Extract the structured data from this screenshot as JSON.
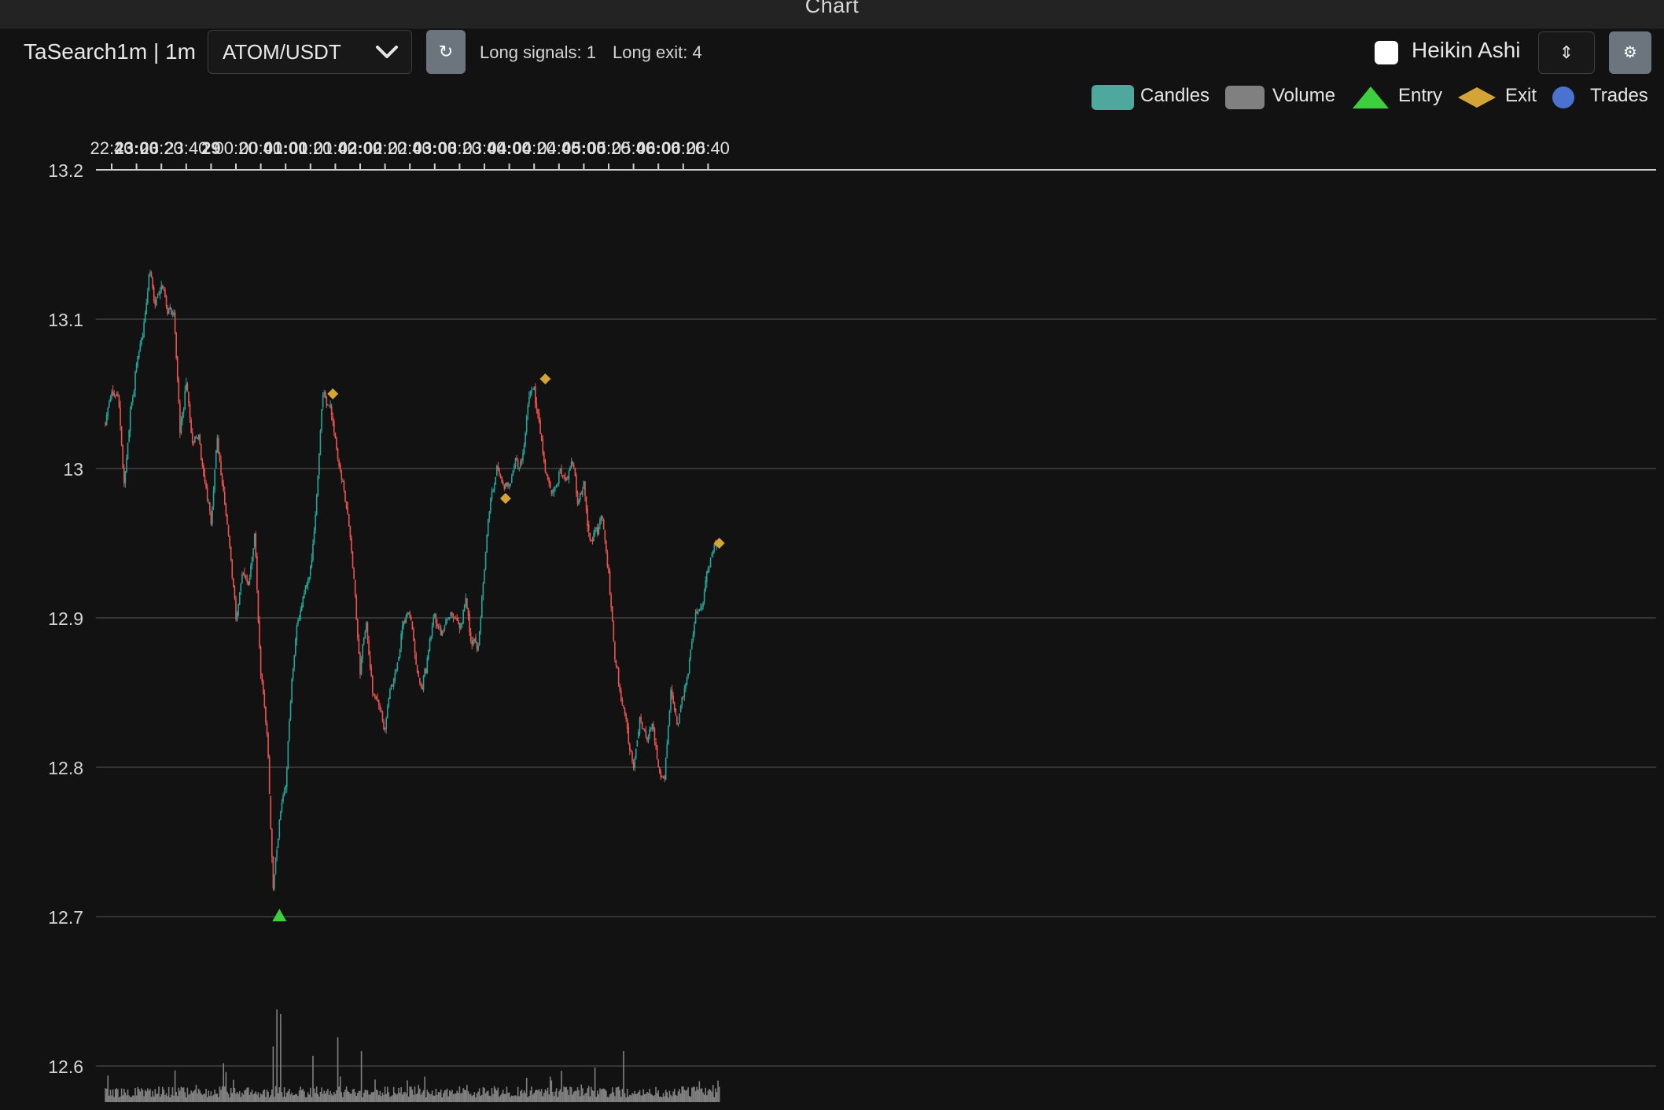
{
  "window": {
    "title": "Chart"
  },
  "toolbar": {
    "strategy_label": "TaSearch1m | 1m",
    "pair": "ATOM/USDT",
    "refresh_icon": "↻",
    "long_signals": "Long signals: 1",
    "long_exit": "Long exit: 4",
    "heikin_ashi_label": "Heikin Ashi",
    "heikin_ashi_checked": false,
    "sort_icon": "⇕",
    "settings_icon": "⚙"
  },
  "legend": {
    "candles": "Candles",
    "volume": "Volume",
    "entry": "Entry",
    "exit": "Exit",
    "trades": "Trades"
  },
  "colors": {
    "up": "#26a69a",
    "down": "#ef5350",
    "volume": "#808080",
    "entry": "#3ecf3e",
    "exit": "#d4a437",
    "trades": "#4a73d1",
    "grid": "#555555",
    "background": "#121212"
  },
  "chart_data": {
    "type": "candlestick",
    "x_ticks": [
      {
        "label": "22:40",
        "bold": false
      },
      {
        "label": "23:00",
        "bold": true
      },
      {
        "label": "23:20",
        "bold": false
      },
      {
        "label": "23:40",
        "bold": false
      },
      {
        "label": "29",
        "bold": true
      },
      {
        "label": "00:20",
        "bold": false
      },
      {
        "label": "00:40",
        "bold": false
      },
      {
        "label": "01:00",
        "bold": true
      },
      {
        "label": "01:20",
        "bold": false
      },
      {
        "label": "01:40",
        "bold": false
      },
      {
        "label": "02:00",
        "bold": true
      },
      {
        "label": "02:20",
        "bold": false
      },
      {
        "label": "02:40",
        "bold": false
      },
      {
        "label": "03:00",
        "bold": true
      },
      {
        "label": "03:20",
        "bold": false
      },
      {
        "label": "03:40",
        "bold": false
      },
      {
        "label": "04:00",
        "bold": true
      },
      {
        "label": "04:20",
        "bold": false
      },
      {
        "label": "04:40",
        "bold": false
      },
      {
        "label": "05:00",
        "bold": true
      },
      {
        "label": "05:20",
        "bold": false
      },
      {
        "label": "05:40",
        "bold": false
      },
      {
        "label": "06:00",
        "bold": true
      },
      {
        "label": "06:20",
        "bold": false
      },
      {
        "label": "06:40",
        "bold": false
      }
    ],
    "y_ticks": [
      13.2,
      13.1,
      13,
      12.9,
      12.8,
      12.7,
      12.6
    ],
    "y_tick_labels": [
      "13.2",
      "13.1",
      "13",
      "12.9",
      "12.8",
      "12.7",
      "12.6"
    ],
    "ylim": [
      12.58,
      13.2
    ],
    "time_start": "22:35",
    "time_end": "06:49",
    "price_path": [
      [
        "22:35",
        13.03
      ],
      [
        "22:40",
        13.05
      ],
      [
        "22:45",
        13.05
      ],
      [
        "22:50",
        12.99
      ],
      [
        "22:55",
        13.04
      ],
      [
        "23:00",
        13.07
      ],
      [
        "23:05",
        13.09
      ],
      [
        "23:10",
        13.13
      ],
      [
        "23:15",
        13.11
      ],
      [
        "23:20",
        13.12
      ],
      [
        "23:25",
        13.11
      ],
      [
        "23:30",
        13.11
      ],
      [
        "23:35",
        13.03
      ],
      [
        "23:40",
        13.06
      ],
      [
        "23:45",
        13.02
      ],
      [
        "23:50",
        13.02
      ],
      [
        "23:55",
        12.99
      ],
      [
        "00:00",
        12.96
      ],
      [
        "00:05",
        13.02
      ],
      [
        "00:10",
        12.98
      ],
      [
        "00:15",
        12.95
      ],
      [
        "00:20",
        12.9
      ],
      [
        "00:25",
        12.93
      ],
      [
        "00:30",
        12.92
      ],
      [
        "00:35",
        12.95
      ],
      [
        "00:40",
        12.86
      ],
      [
        "00:45",
        12.82
      ],
      [
        "00:50",
        12.72
      ],
      [
        "00:55",
        12.77
      ],
      [
        "01:00",
        12.79
      ],
      [
        "01:05",
        12.86
      ],
      [
        "01:10",
        12.9
      ],
      [
        "01:15",
        12.92
      ],
      [
        "01:20",
        12.93
      ],
      [
        "01:25",
        12.98
      ],
      [
        "01:30",
        13.05
      ],
      [
        "01:35",
        13.04
      ],
      [
        "01:40",
        13.02
      ],
      [
        "01:45",
        12.99
      ],
      [
        "01:50",
        12.97
      ],
      [
        "01:55",
        12.93
      ],
      [
        "02:00",
        12.87
      ],
      [
        "02:05",
        12.9
      ],
      [
        "02:10",
        12.85
      ],
      [
        "02:15",
        12.84
      ],
      [
        "02:20",
        12.83
      ],
      [
        "02:25",
        12.86
      ],
      [
        "02:30",
        12.87
      ],
      [
        "02:35",
        12.9
      ],
      [
        "02:40",
        12.9
      ],
      [
        "02:45",
        12.87
      ],
      [
        "02:50",
        12.85
      ],
      [
        "02:55",
        12.88
      ],
      [
        "03:00",
        12.9
      ],
      [
        "03:05",
        12.89
      ],
      [
        "03:10",
        12.9
      ],
      [
        "03:15",
        12.9
      ],
      [
        "03:20",
        12.89
      ],
      [
        "03:25",
        12.91
      ],
      [
        "03:30",
        12.88
      ],
      [
        "03:35",
        12.88
      ],
      [
        "03:40",
        12.93
      ],
      [
        "03:45",
        12.98
      ],
      [
        "03:50",
        13.0
      ],
      [
        "03:55",
        12.99
      ],
      [
        "04:00",
        12.99
      ],
      [
        "04:05",
        13.0
      ],
      [
        "04:10",
        13.0
      ],
      [
        "04:15",
        13.05
      ],
      [
        "04:20",
        13.06
      ],
      [
        "04:25",
        13.03
      ],
      [
        "04:30",
        13.0
      ],
      [
        "04:35",
        12.99
      ],
      [
        "04:40",
        13.0
      ],
      [
        "04:45",
        12.99
      ],
      [
        "04:50",
        13.0
      ],
      [
        "04:55",
        12.98
      ],
      [
        "05:00",
        12.99
      ],
      [
        "05:05",
        12.95
      ],
      [
        "05:10",
        12.96
      ],
      [
        "05:15",
        12.97
      ],
      [
        "05:20",
        12.93
      ],
      [
        "05:25",
        12.88
      ],
      [
        "05:30",
        12.85
      ],
      [
        "05:35",
        12.82
      ],
      [
        "05:40",
        12.8
      ],
      [
        "05:45",
        12.83
      ],
      [
        "05:50",
        12.82
      ],
      [
        "05:55",
        12.83
      ],
      [
        "06:00",
        12.8
      ],
      [
        "06:05",
        12.79
      ],
      [
        "06:10",
        12.86
      ],
      [
        "06:15",
        12.83
      ],
      [
        "06:20",
        12.85
      ],
      [
        "06:25",
        12.87
      ],
      [
        "06:30",
        12.9
      ],
      [
        "06:35",
        12.91
      ],
      [
        "06:40",
        12.93
      ],
      [
        "06:45",
        12.95
      ],
      [
        "06:49",
        12.95
      ]
    ],
    "entries": [
      {
        "time": "00:55",
        "price": 12.7
      }
    ],
    "exits": [
      {
        "time": "01:38",
        "price": 13.05
      },
      {
        "time": "03:57",
        "price": 12.98
      },
      {
        "time": "04:29",
        "price": 13.06
      },
      {
        "time": "06:49",
        "price": 12.95
      }
    ],
    "volume_spikes": [
      {
        "time": "00:53",
        "level": 1.0
      },
      {
        "time": "00:56",
        "level": 0.95
      },
      {
        "time": "00:50",
        "level": 0.6
      },
      {
        "time": "01:42",
        "level": 0.7
      },
      {
        "time": "02:01",
        "level": 0.55
      },
      {
        "time": "05:32",
        "level": 0.55
      },
      {
        "time": "01:22",
        "level": 0.5
      },
      {
        "time": "00:10",
        "level": 0.42
      }
    ]
  }
}
